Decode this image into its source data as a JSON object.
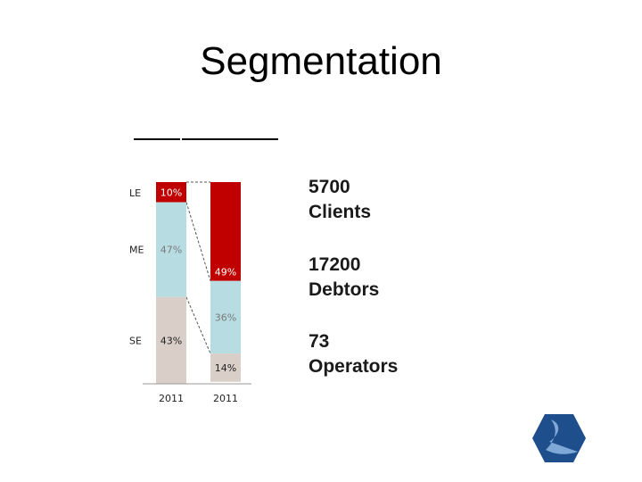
{
  "title": "Segmentation",
  "chart_data": {
    "type": "bar",
    "stacked": true,
    "categories": [
      "2011",
      "2011"
    ],
    "segments": [
      "LE",
      "ME",
      "SE"
    ],
    "series": [
      {
        "name": "LE",
        "values": [
          10,
          49
        ],
        "labels": [
          "10%",
          "49%"
        ],
        "color": "#c00000"
      },
      {
        "name": "ME",
        "values": [
          47,
          36
        ],
        "labels": [
          "47%",
          "36%"
        ],
        "color": "#b7dde3"
      },
      {
        "name": "SE",
        "values": [
          43,
          14
        ],
        "labels": [
          "43%",
          "14%"
        ],
        "color": "#d9cfc8"
      }
    ],
    "ylim": [
      0,
      100
    ],
    "connector_lines": true
  },
  "stats": [
    {
      "value": "5700",
      "label": "Clients"
    },
    {
      "value": "17200",
      "label": "Debtors"
    },
    {
      "value": "73",
      "label": "Operators"
    }
  ],
  "colors": {
    "le": "#c00000",
    "me": "#b7dde3",
    "se": "#d9cfc8",
    "logo_dark": "#1f4e8c",
    "logo_light": "#7fa8d6"
  },
  "logo_icon": "company-hexagon-logo-icon"
}
